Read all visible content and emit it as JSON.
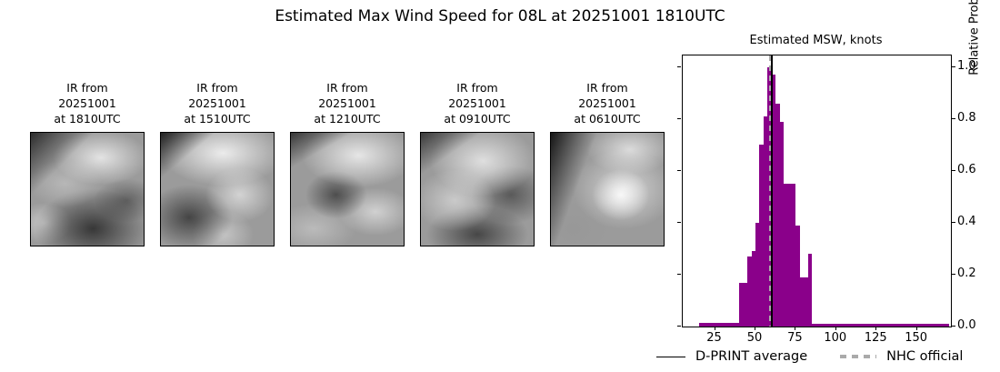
{
  "title": "Estimated Max Wind Speed for 08L at 20251001 1810UTC",
  "panels": [
    {
      "label_lines": [
        "IR from",
        "20251001",
        "at 1810UTC"
      ]
    },
    {
      "label_lines": [
        "IR from",
        "20251001",
        "at 1510UTC"
      ]
    },
    {
      "label_lines": [
        "IR from",
        "20251001",
        "at 1210UTC"
      ]
    },
    {
      "label_lines": [
        "IR from",
        "20251001",
        "at 0910UTC"
      ]
    },
    {
      "label_lines": [
        "IR from",
        "20251001",
        "at 0610UTC"
      ]
    }
  ],
  "chart": {
    "title": "Estimated MSW, knots",
    "ylabel_right": "Relative Prob",
    "legend": [
      {
        "swatch": "solid-black-line",
        "label": "D-PRINT average"
      },
      {
        "swatch": "gray-dashed-line",
        "label": "NHC official"
      }
    ]
  },
  "chart_data": {
    "type": "bar",
    "title": "Estimated MSW, knots",
    "xlabel": "",
    "ylabel": "Relative Prob",
    "bar_color": "#8a008a",
    "grid": false,
    "xlim": [
      5,
      171
    ],
    "ylim": [
      0,
      1.045
    ],
    "x_ticks": [
      25,
      50,
      75,
      100,
      125,
      150
    ],
    "y_ticks": [
      0.0,
      0.2,
      0.4,
      0.6,
      0.8,
      1.0
    ],
    "bin_width_kt": 2.5,
    "segments_from_to_value": [
      [
        15,
        40,
        0.015
      ],
      [
        40,
        45,
        0.17
      ],
      [
        45,
        47.5,
        0.27
      ],
      [
        47.5,
        50,
        0.29
      ],
      [
        50,
        52.5,
        0.4
      ],
      [
        52.5,
        55,
        0.7
      ],
      [
        55,
        57.5,
        0.81
      ],
      [
        57.5,
        60,
        1.0
      ],
      [
        60,
        62.5,
        0.97
      ],
      [
        62.5,
        65,
        0.86
      ],
      [
        65,
        67.5,
        0.79
      ],
      [
        67.5,
        75,
        0.55
      ],
      [
        75,
        77.5,
        0.39
      ],
      [
        77.5,
        82.5,
        0.19
      ],
      [
        82.5,
        85,
        0.28
      ],
      [
        85,
        170,
        0.01
      ]
    ],
    "vlines": [
      {
        "name": "D-PRINT average",
        "x": 60.3,
        "style": "solid",
        "color": "#000000"
      },
      {
        "name": "NHC official",
        "x": 59.2,
        "style": "dashed",
        "color": "#aaaaaa"
      }
    ],
    "legend_position": "bottom"
  }
}
